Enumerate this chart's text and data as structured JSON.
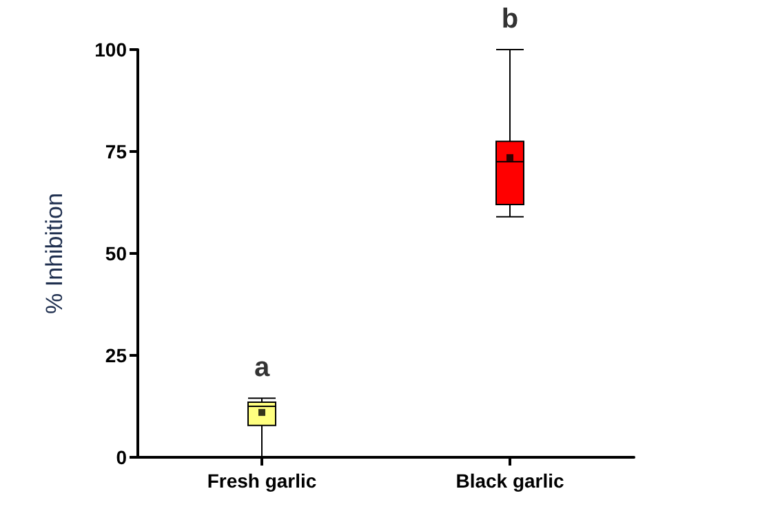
{
  "chart_data": {
    "type": "box",
    "ylabel": "% Inhibition",
    "categories": [
      "Fresh garlic",
      "Black garlic"
    ],
    "boxes": [
      {
        "low": 0,
        "q1": 7.8,
        "median": 12.5,
        "q3": 13.5,
        "high": 14.5,
        "mean": 11
      },
      {
        "low": 59,
        "q1": 62,
        "median": 72.5,
        "q3": 77.5,
        "high": 100,
        "mean": 73.5
      }
    ],
    "colors": [
      "#ffff80",
      "#ff0000"
    ],
    "ylim": [
      0,
      100
    ],
    "yticks": [
      0,
      25,
      50,
      75,
      100
    ],
    "annotations": [
      {
        "text": "a",
        "x": "Fresh garlic",
        "y": 14.5
      },
      {
        "text": "b",
        "x": "Black garlic",
        "y": 100
      }
    ]
  }
}
